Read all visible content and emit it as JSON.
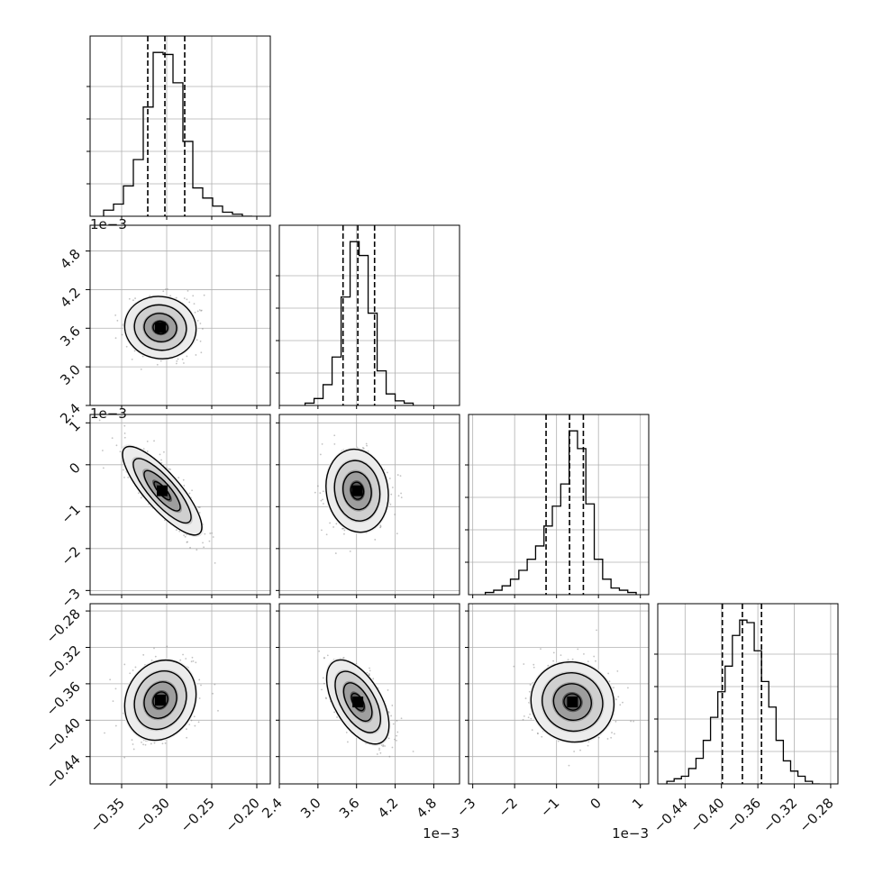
{
  "chart_data": {
    "type": "corner",
    "n_params": 4,
    "params": [
      {
        "range": [
          -0.385,
          -0.185
        ],
        "ticks": [
          -0.35,
          -0.3,
          -0.25,
          -0.2
        ],
        "tick_labels": [
          "−0.35",
          "−0.30",
          "−0.25",
          "−0.20"
        ],
        "offset_label": "",
        "quantiles": [
          -0.321,
          -0.302,
          -0.28
        ],
        "hist_edges": [
          -0.37,
          -0.359,
          -0.348,
          -0.337,
          -0.326,
          -0.315,
          -0.304,
          -0.293,
          -0.282,
          -0.271,
          -0.26,
          -0.249,
          -0.238,
          -0.227,
          -0.216,
          -0.205
        ],
        "hist_counts": [
          0.03,
          0.06,
          0.15,
          0.28,
          0.54,
          0.81,
          0.8,
          0.66,
          0.37,
          0.14,
          0.09,
          0.05,
          0.02,
          0.01,
          0.0
        ]
      },
      {
        "range": [
          2.4,
          5.2
        ],
        "ticks": [
          2.4,
          3.0,
          3.6,
          4.2,
          4.8
        ],
        "tick_labels": [
          "2.4",
          "3.0",
          "3.6",
          "4.2",
          "4.8"
        ],
        "offset_label": "1e−3",
        "quantiles": [
          3.39,
          3.62,
          3.88
        ],
        "hist_edges": [
          2.8,
          2.94,
          3.08,
          3.22,
          3.36,
          3.5,
          3.64,
          3.78,
          3.92,
          4.06,
          4.2,
          4.34,
          4.48
        ],
        "hist_counts": [
          0.01,
          0.03,
          0.09,
          0.21,
          0.47,
          0.71,
          0.65,
          0.4,
          0.15,
          0.05,
          0.02,
          0.01
        ]
      },
      {
        "range": [
          -3.1,
          1.2
        ],
        "ticks": [
          -3,
          -2,
          -1,
          0,
          1
        ],
        "tick_labels": [
          "−3",
          "−2",
          "−1",
          "0",
          "1"
        ],
        "offset_label": "1e−3",
        "quantiles": [
          -1.25,
          -0.69,
          -0.36
        ],
        "hist_edges": [
          -2.7,
          -2.5,
          -2.3,
          -2.1,
          -1.9,
          -1.7,
          -1.5,
          -1.3,
          -1.1,
          -0.9,
          -0.7,
          -0.5,
          -0.3,
          -0.1,
          0.1,
          0.3,
          0.5,
          0.7,
          0.9
        ],
        "hist_counts": [
          0.01,
          0.02,
          0.04,
          0.07,
          0.11,
          0.16,
          0.22,
          0.31,
          0.4,
          0.5,
          0.74,
          0.66,
          0.41,
          0.16,
          0.07,
          0.03,
          0.02,
          0.01
        ]
      },
      {
        "range": [
          -0.47,
          -0.272
        ],
        "ticks": [
          -0.44,
          -0.4,
          -0.36,
          -0.32,
          -0.28
        ],
        "tick_labels": [
          "−0.44",
          "−0.40",
          "−0.36",
          "−0.32",
          "−0.28"
        ],
        "offset_label": "",
        "quantiles": [
          -0.399,
          -0.377,
          -0.356
        ],
        "hist_edges": [
          -0.46,
          -0.452,
          -0.444,
          -0.436,
          -0.428,
          -0.42,
          -0.412,
          -0.404,
          -0.396,
          -0.388,
          -0.38,
          -0.372,
          -0.364,
          -0.356,
          -0.348,
          -0.34,
          -0.332,
          -0.324,
          -0.316,
          -0.308,
          -0.3,
          -0.292
        ],
        "hist_counts": [
          0.01,
          0.02,
          0.03,
          0.06,
          0.1,
          0.17,
          0.26,
          0.36,
          0.46,
          0.58,
          0.64,
          0.63,
          0.52,
          0.4,
          0.3,
          0.17,
          0.09,
          0.05,
          0.03,
          0.01,
          0.0
        ]
      }
    ],
    "pairs": [
      {
        "x": 0,
        "y": 1,
        "center": [
          -0.307,
          3.61
        ],
        "sigma": [
          0.018,
          0.22
        ],
        "rho": -0.05
      },
      {
        "x": 0,
        "y": 2,
        "center": [
          -0.305,
          -0.62
        ],
        "sigma": [
          0.02,
          0.48
        ],
        "rho": -0.82
      },
      {
        "x": 1,
        "y": 2,
        "center": [
          3.61,
          -0.62
        ],
        "sigma": [
          0.22,
          0.45
        ],
        "rho": -0.1
      },
      {
        "x": 0,
        "y": 3,
        "center": [
          -0.307,
          -0.378
        ],
        "sigma": [
          0.018,
          0.02
        ],
        "rho": 0.15
      },
      {
        "x": 1,
        "y": 3,
        "center": [
          3.62,
          -0.38
        ],
        "sigma": [
          0.22,
          0.021
        ],
        "rho": -0.55
      },
      {
        "x": 2,
        "y": 3,
        "center": [
          -0.62,
          -0.38
        ],
        "sigma": [
          0.45,
          0.02
        ],
        "rho": -0.05
      }
    ],
    "grid": true,
    "colors": {
      "line": "#000000",
      "grid": "#b0b0b0",
      "scatter": "#777777"
    }
  }
}
